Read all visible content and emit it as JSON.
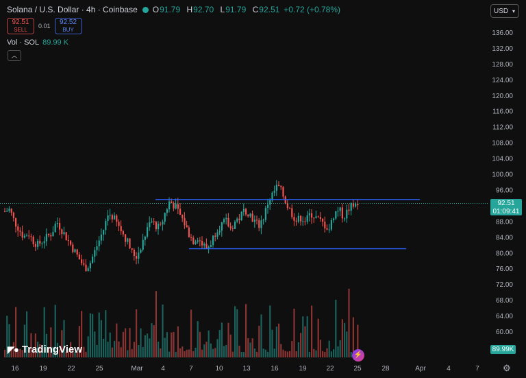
{
  "header": {
    "title": "Solana / U.S. Dollar · 4h · Coinbase",
    "ohlc": [
      {
        "k": "O",
        "v": "91.79"
      },
      {
        "k": "H",
        "v": "92.70"
      },
      {
        "k": "L",
        "v": "91.79"
      },
      {
        "k": "C",
        "v": "92.51"
      }
    ],
    "change": "+0.72 (+0.78%)"
  },
  "trade": {
    "sell_price": "92.51",
    "sell_label": "SELL",
    "spread": "0.01",
    "buy_price": "92.52",
    "buy_label": "BUY"
  },
  "volume_legend": {
    "label": "Vol · SOL",
    "value": "89.99 K"
  },
  "currency": "USD",
  "price_tag": {
    "price": "92.51",
    "countdown": "01:09:41"
  },
  "volume_tag": "89.99K",
  "branding": {
    "name": "TradingView"
  },
  "colors": {
    "up": "#26a69a",
    "down": "#ef5350",
    "line": "#2962ff",
    "bg": "#0f0f0f"
  },
  "chart_data": {
    "type": "candlestick",
    "symbol": "SOLUSD",
    "interval": "4h",
    "yaxis": {
      "ticks": [
        "60.00",
        "64.00",
        "68.00",
        "72.00",
        "76.00",
        "80.00",
        "84.00",
        "88.00",
        "92.00",
        "96.00",
        "100.00",
        "104.00",
        "108.00",
        "112.00",
        "116.00",
        "120.00",
        "124.00",
        "128.00",
        "132.00",
        "136.00"
      ]
    },
    "xaxis": {
      "ticks": [
        "16",
        "19",
        "22",
        "25",
        "Mar",
        "4",
        "7",
        "10",
        "13",
        "16",
        "19",
        "22",
        "25",
        "28",
        "Apr",
        "4",
        "7"
      ]
    },
    "price_path": [
      90.5,
      91,
      88,
      86,
      84,
      85,
      83,
      82,
      83,
      84,
      85,
      88,
      86,
      84,
      82,
      80,
      78,
      76,
      77,
      80,
      83,
      86,
      90,
      89,
      87,
      85,
      83,
      80,
      79,
      82,
      85,
      88,
      87,
      86,
      90,
      93,
      92,
      90,
      88,
      85,
      83,
      84,
      82,
      81,
      83,
      86,
      87,
      88,
      86,
      88,
      89,
      91,
      90,
      88,
      87,
      89,
      93,
      95,
      97,
      95,
      92,
      90,
      88,
      89,
      88,
      90,
      89,
      88,
      87,
      86,
      90,
      91,
      89,
      91,
      92,
      92.5
    ],
    "horizontal_lines": [
      {
        "price": 93.5,
        "from": "Mar 3",
        "to": "Mar 29"
      },
      {
        "price": 81.0,
        "from": "Mar 7",
        "to": "Mar 28"
      }
    ],
    "last_price": 92.51
  }
}
